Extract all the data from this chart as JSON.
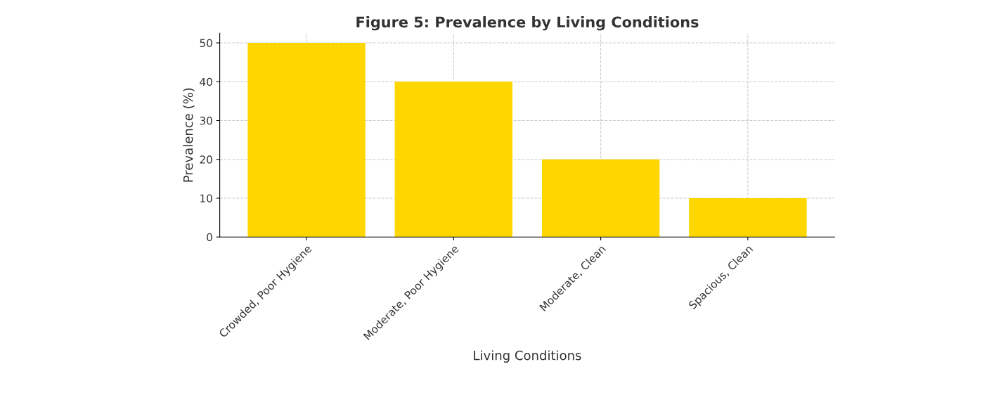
{
  "chart_data": {
    "type": "bar",
    "title": "Figure 5: Prevalence by Living Conditions",
    "xlabel": "Living Conditions",
    "ylabel": "Prevalence (%)",
    "categories": [
      "Crowded, Poor Hygiene",
      "Moderate, Poor Hygiene",
      "Moderate, Clean",
      "Spacious, Clean"
    ],
    "values": [
      50,
      40,
      20,
      10
    ],
    "color": "#ffd700",
    "ylim": [
      0,
      52.5
    ],
    "yticks": [
      0,
      10,
      20,
      30,
      40,
      50
    ],
    "grid": true
  }
}
